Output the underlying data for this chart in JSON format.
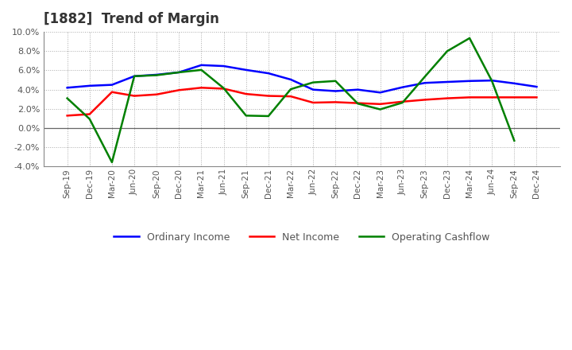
{
  "title": "[1882]  Trend of Margin",
  "x_labels": [
    "Sep-19",
    "Dec-19",
    "Mar-20",
    "Jun-20",
    "Sep-20",
    "Dec-20",
    "Mar-21",
    "Jun-21",
    "Sep-21",
    "Dec-21",
    "Mar-22",
    "Jun-22",
    "Sep-22",
    "Dec-22",
    "Mar-23",
    "Jun-23",
    "Sep-23",
    "Dec-23",
    "Mar-24",
    "Jun-24",
    "Sep-24",
    "Dec-24"
  ],
  "ordinary_income": [
    4.2,
    4.4,
    4.5,
    5.4,
    5.55,
    5.8,
    6.55,
    6.45,
    6.05,
    5.7,
    5.05,
    4.0,
    3.85,
    4.0,
    3.7,
    4.25,
    4.7,
    4.8,
    4.9,
    4.95,
    4.65,
    4.3
  ],
  "net_income": [
    1.3,
    1.45,
    3.75,
    3.35,
    3.5,
    3.95,
    4.2,
    4.1,
    3.55,
    3.35,
    3.3,
    2.65,
    2.7,
    2.6,
    2.5,
    2.75,
    2.95,
    3.1,
    3.2,
    3.2,
    3.2,
    3.2
  ],
  "operating_cashflow": [
    3.1,
    0.95,
    -3.55,
    5.4,
    5.5,
    5.8,
    6.05,
    4.15,
    1.3,
    1.25,
    4.05,
    4.75,
    4.9,
    2.55,
    1.95,
    2.65,
    5.35,
    8.0,
    9.35,
    4.9,
    -1.3,
    null
  ],
  "ordinary_income_color": "#0000FF",
  "net_income_color": "#FF0000",
  "operating_cashflow_color": "#008000",
  "ylim": [
    -4.0,
    10.0
  ],
  "yticks": [
    -4.0,
    -2.0,
    0.0,
    2.0,
    4.0,
    6.0,
    8.0,
    10.0
  ],
  "background_color": "#FFFFFF",
  "plot_bg_color": "#FFFFFF",
  "grid_color": "#AAAAAA",
  "line_width": 1.8,
  "title_color": "#333333",
  "tick_label_color": "#555555"
}
